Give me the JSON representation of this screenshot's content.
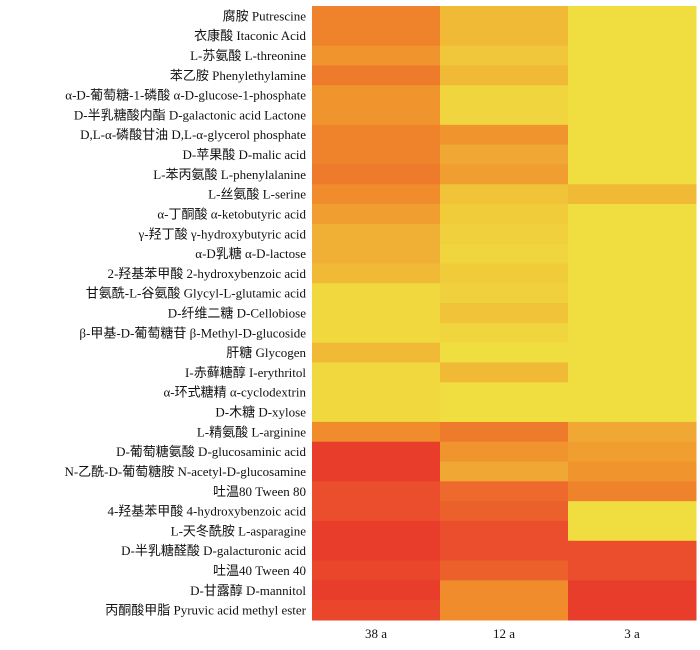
{
  "chart_data": {
    "type": "heatmap",
    "title": "",
    "xlabel": "",
    "ylabel": "",
    "columns": [
      "38 a",
      "12 a",
      "3 a"
    ],
    "rows": [
      {
        "label": "腐胺  Putrescine",
        "values": [
          0.55,
          0.25,
          0.05
        ]
      },
      {
        "label": "衣康酸  Itaconic Acid",
        "values": [
          0.55,
          0.25,
          0.05
        ]
      },
      {
        "label": "L-苏氨酸  L-threonine",
        "values": [
          0.45,
          0.18,
          0.05
        ]
      },
      {
        "label": "苯乙胺  Phenylethylamine",
        "values": [
          0.6,
          0.25,
          0.05
        ]
      },
      {
        "label": "α-D-葡萄糖-1-磷酸  α-D-glucose-1-phosphate",
        "values": [
          0.45,
          0.1,
          0.05
        ]
      },
      {
        "label": "D-半乳糖酸内酯  D-galactonic acid Lactone",
        "values": [
          0.45,
          0.1,
          0.05
        ]
      },
      {
        "label": "D,L-α-磷酸甘油  D,L-α-glycerol phosphate",
        "values": [
          0.55,
          0.45,
          0.05
        ]
      },
      {
        "label": "D-苹果酸  D-malic acid",
        "values": [
          0.55,
          0.35,
          0.05
        ]
      },
      {
        "label": "L-苯丙氨酸  L-phenylalanine",
        "values": [
          0.6,
          0.4,
          0.05
        ]
      },
      {
        "label": "L-丝氨酸  L-serine",
        "values": [
          0.5,
          0.2,
          0.25
        ]
      },
      {
        "label": "α-丁酮酸  α-ketobutyric acid",
        "values": [
          0.4,
          0.15,
          0.05
        ]
      },
      {
        "label": "γ-羟丁酸  γ-hydroxybutyric acid",
        "values": [
          0.3,
          0.12,
          0.05
        ]
      },
      {
        "label": "α-D乳糖  α-D-lactose",
        "values": [
          0.3,
          0.1,
          0.05
        ]
      },
      {
        "label": "2-羟基苯甲酸  2-hydroxybenzoic acid",
        "values": [
          0.25,
          0.15,
          0.05
        ]
      },
      {
        "label": "甘氨酰-L-谷氨酸  Glycyl-L-glutamic acid",
        "values": [
          0.08,
          0.12,
          0.05
        ]
      },
      {
        "label": "D-纤维二糖  D-Cellobiose",
        "values": [
          0.08,
          0.2,
          0.05
        ]
      },
      {
        "label": "β-甲基-D-葡萄糖苷  β-Methyl-D-glucoside",
        "values": [
          0.08,
          0.1,
          0.05
        ]
      },
      {
        "label": "肝糖  Glycogen",
        "values": [
          0.25,
          0.05,
          0.05
        ]
      },
      {
        "label": "I-赤藓糖醇  I-erythritol",
        "values": [
          0.08,
          0.25,
          0.05
        ]
      },
      {
        "label": "α-环式糖精  α-cyclodextrin",
        "values": [
          0.08,
          0.05,
          0.05
        ]
      },
      {
        "label": "D-木糖  D-xylose",
        "values": [
          0.08,
          0.05,
          0.05
        ]
      },
      {
        "label": "L-精氨酸  L-arginine",
        "values": [
          0.5,
          0.6,
          0.35
        ]
      },
      {
        "label": "D-葡萄糖氨酸  D-glucosaminic acid",
        "values": [
          0.95,
          0.45,
          0.4
        ]
      },
      {
        "label": "N-乙酰-D-葡萄糖胺  N-acetyl-D-glucosamine",
        "values": [
          0.95,
          0.35,
          0.45
        ]
      },
      {
        "label": "吐温80  Tween 80",
        "values": [
          0.85,
          0.7,
          0.55
        ]
      },
      {
        "label": "4-羟基苯甲酸  4-hydroxybenzoic acid",
        "values": [
          0.85,
          0.75,
          0.05
        ]
      },
      {
        "label": "L-天冬酰胺  L-asparagine",
        "values": [
          0.95,
          0.85,
          0.05
        ]
      },
      {
        "label": "D-半乳糖醛酸  D-galacturonic acid",
        "values": [
          0.95,
          0.85,
          0.85
        ]
      },
      {
        "label": "吐温40 Tween 40",
        "values": [
          0.9,
          0.75,
          0.85
        ]
      },
      {
        "label": "D-甘露醇  D-mannitol",
        "values": [
          0.95,
          0.5,
          0.95
        ]
      },
      {
        "label": "丙酮酸甲脂  Pyruvic acid methyl ester",
        "values": [
          0.9,
          0.5,
          0.95
        ]
      }
    ],
    "value_range": [
      0,
      1
    ],
    "color_scale": {
      "low": "#f0e742",
      "mid": "#f08c2c",
      "high": "#e8342c"
    },
    "grid": false,
    "legend": "none"
  }
}
